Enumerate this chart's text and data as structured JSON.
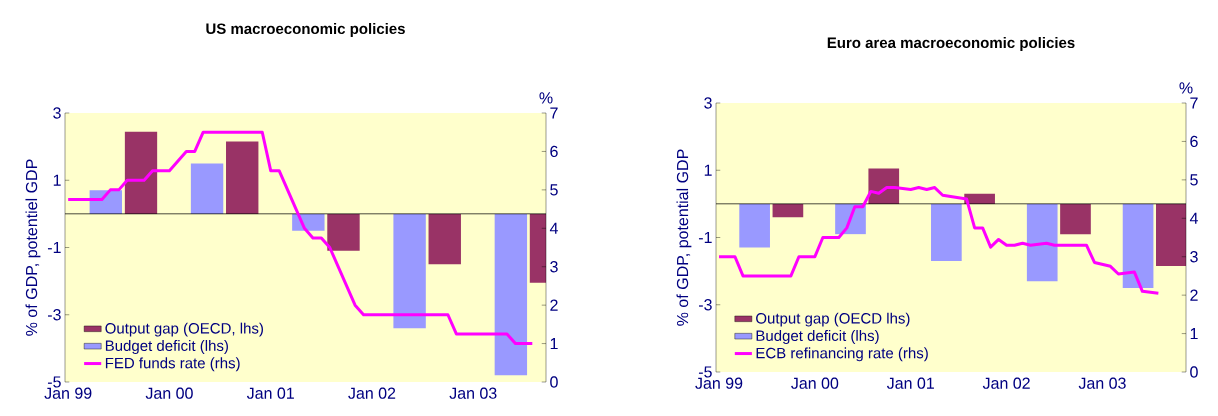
{
  "chart_data": [
    {
      "type": "bar",
      "title": "US macroeconomic policies",
      "ylabel": "% of GDP, potentiel GDP",
      "y2label": "%",
      "xlim": [
        "1998-12-20",
        "2003-09-20"
      ],
      "xticks": [
        {
          "value": "1999-01",
          "label": "Jan 99"
        },
        {
          "value": "2000-01",
          "label": "Jan 00"
        },
        {
          "value": "2001-01",
          "label": "Jan 01"
        },
        {
          "value": "2002-01",
          "label": "Jan 02"
        },
        {
          "value": "2003-01",
          "label": "Jan 03"
        }
      ],
      "ylim": [
        -5,
        3
      ],
      "yticks": [
        -5,
        -3,
        -1,
        1,
        3
      ],
      "y2lim": [
        0,
        7
      ],
      "y2ticks": [
        0,
        1,
        2,
        3,
        4,
        5,
        6,
        7
      ],
      "legend": "bottom left",
      "ref_lines": [
        {
          "axis": "y",
          "value": 0,
          "color": "#000000"
        }
      ],
      "series": [
        {
          "name": "Output gap (OECD, lhs)",
          "color": "#993366",
          "x": [
            "1999-09-20",
            "2000-09-20",
            "2001-09-20",
            "2002-09-20",
            "2003-09-20"
          ],
          "values": [
            2.45,
            2.15,
            -1.1,
            -1.5,
            -2.05
          ]
        },
        {
          "name": "Budget deficit (lhs)",
          "color": "#9999ff",
          "x": [
            "1999-05-15",
            "2000-05-15",
            "2001-05-15",
            "2002-05-15",
            "2003-05-15"
          ],
          "values": [
            0.7,
            1.5,
            -0.5,
            -3.4,
            -4.8
          ]
        },
        {
          "name": "FED funds rate (rhs)",
          "type": "line",
          "axis": "y2",
          "color": "#ff00ff",
          "x": [
            "1999-01",
            "1999-05",
            "1999-06",
            "1999-07",
            "1999-08",
            "1999-10",
            "1999-11",
            "2000-01",
            "2000-03",
            "2000-04",
            "2000-05",
            "2000-12",
            "2001-01",
            "2001-02",
            "2001-05",
            "2001-06",
            "2001-07",
            "2001-08",
            "2001-11",
            "2001-12",
            "2002-10",
            "2002-11",
            "2003-05",
            "2003-06",
            "2003-08"
          ],
          "values": [
            4.75,
            4.75,
            5.0,
            5.0,
            5.25,
            5.25,
            5.5,
            5.5,
            6.0,
            6.0,
            6.5,
            6.5,
            5.5,
            5.5,
            4.0,
            3.75,
            3.75,
            3.5,
            2.0,
            1.75,
            1.75,
            1.25,
            1.25,
            1.0,
            1.0
          ]
        }
      ]
    },
    {
      "type": "bar",
      "title": "Euro area macroeconomic policies",
      "ylabel": "% of GDP, potential GDP",
      "y2label": "%",
      "xlim": [
        "1998-12-20",
        "2003-11-15"
      ],
      "xticks": [
        {
          "value": "1999-01",
          "label": "Jan 99"
        },
        {
          "value": "2000-01",
          "label": "Jan 00"
        },
        {
          "value": "2001-01",
          "label": "Jan 01"
        },
        {
          "value": "2002-01",
          "label": "Jan 02"
        },
        {
          "value": "2003-01",
          "label": "Jan 03"
        }
      ],
      "ylim": [
        -5,
        3
      ],
      "yticks": [
        -5,
        -3,
        -1,
        1,
        3
      ],
      "y2lim": [
        0,
        7
      ],
      "y2ticks": [
        0,
        1,
        2,
        3,
        4,
        5,
        6,
        7
      ],
      "legend": "bottom left",
      "ref_lines": [
        {
          "axis": "y",
          "value": 0,
          "color": "#000000"
        }
      ],
      "series": [
        {
          "name": "Output gap (OECD lhs)",
          "color": "#993366",
          "x": [
            "1999-09-20",
            "2000-09-20",
            "2001-09-20",
            "2002-09-20",
            "2003-09-20"
          ],
          "values": [
            -0.4,
            1.05,
            0.3,
            -0.9,
            -1.85
          ]
        },
        {
          "name": "Budget deficit (lhs)",
          "color": "#9999ff",
          "x": [
            "1999-05-15",
            "2000-05-15",
            "2001-05-15",
            "2002-05-15",
            "2003-05-15"
          ],
          "values": [
            -1.3,
            -0.9,
            -1.7,
            -2.3,
            -2.5
          ]
        },
        {
          "name": "ECB refinancing rate (rhs)",
          "type": "line",
          "axis": "y2",
          "color": "#ff00ff",
          "x": [
            "1999-01",
            "1999-03",
            "1999-04",
            "1999-10",
            "1999-11",
            "2000-01",
            "2000-02",
            "2000-04",
            "2000-05",
            "2000-06",
            "2000-07",
            "2000-08",
            "2000-09",
            "2000-10",
            "2000-11",
            "2001-01",
            "2001-02",
            "2001-03",
            "2001-04",
            "2001-05",
            "2001-08",
            "2001-09",
            "2001-10",
            "2001-11",
            "2001-12",
            "2002-01",
            "2002-02",
            "2002-03",
            "2002-04",
            "2002-06",
            "2002-07",
            "2002-11",
            "2002-12",
            "2003-02",
            "2003-03",
            "2003-05",
            "2003-06",
            "2003-08"
          ],
          "values": [
            3.0,
            3.0,
            2.5,
            2.5,
            3.0,
            3.0,
            3.5,
            3.5,
            3.75,
            4.3,
            4.3,
            4.7,
            4.65,
            4.8,
            4.8,
            4.75,
            4.8,
            4.75,
            4.8,
            4.6,
            4.5,
            3.75,
            3.75,
            3.25,
            3.45,
            3.3,
            3.3,
            3.35,
            3.3,
            3.35,
            3.3,
            3.3,
            2.85,
            2.75,
            2.55,
            2.6,
            2.1,
            2.05
          ]
        }
      ]
    }
  ]
}
